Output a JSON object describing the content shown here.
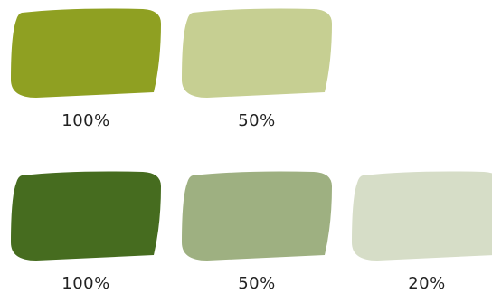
{
  "rows": [
    {
      "swatches": [
        {
          "color": "#8fa022",
          "label": "100%"
        },
        {
          "color": "#c6cf92",
          "label": "50%"
        }
      ]
    },
    {
      "swatches": [
        {
          "color": "#466c1f",
          "label": "100%"
        },
        {
          "color": "#9eb081",
          "label": "50%"
        },
        {
          "color": "#d6ddc7",
          "label": "20%"
        }
      ]
    }
  ]
}
